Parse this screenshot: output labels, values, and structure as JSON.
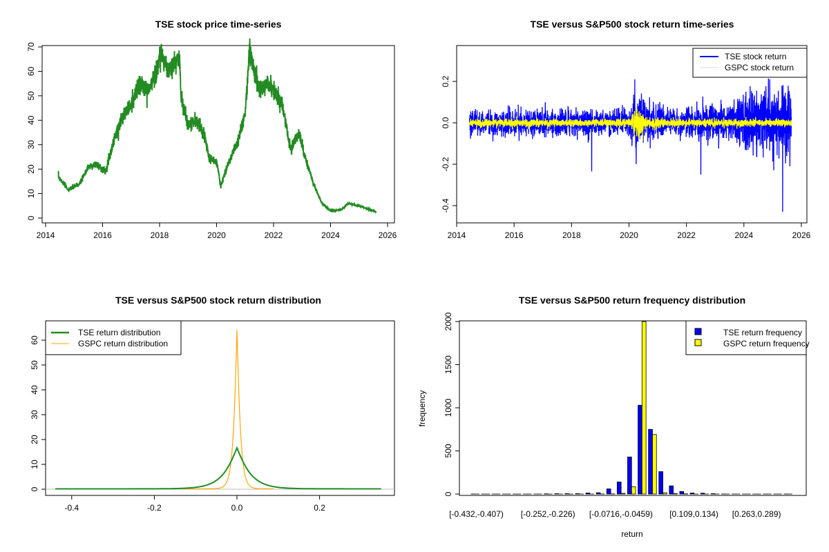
{
  "chart_data": [
    {
      "type": "line",
      "title": "TSE stock price time-series",
      "xlabel": "",
      "ylabel": "",
      "xlim": [
        2014,
        2026
      ],
      "ylim": [
        0,
        70
      ],
      "xticks": [
        2014,
        2016,
        2018,
        2020,
        2022,
        2024,
        2026
      ],
      "yticks": [
        0,
        10,
        20,
        30,
        40,
        50,
        60,
        70
      ],
      "series": [
        {
          "name": "TSE price",
          "color": "#228B22",
          "keypoints": [
            [
              2014.45,
              17
            ],
            [
              2014.8,
              11.5
            ],
            [
              2015.2,
              14
            ],
            [
              2015.5,
              21
            ],
            [
              2015.8,
              22
            ],
            [
              2016.1,
              19
            ],
            [
              2016.4,
              32
            ],
            [
              2016.7,
              42
            ],
            [
              2017.0,
              46
            ],
            [
              2017.3,
              55
            ],
            [
              2017.6,
              52
            ],
            [
              2017.9,
              60
            ],
            [
              2018.05,
              68
            ],
            [
              2018.3,
              60
            ],
            [
              2018.5,
              63
            ],
            [
              2018.7,
              66
            ],
            [
              2018.75,
              50
            ],
            [
              2019.0,
              38
            ],
            [
              2019.3,
              40
            ],
            [
              2019.6,
              33
            ],
            [
              2019.75,
              24
            ],
            [
              2020.0,
              23
            ],
            [
              2020.15,
              13
            ],
            [
              2020.4,
              22
            ],
            [
              2020.7,
              30
            ],
            [
              2021.0,
              42
            ],
            [
              2021.15,
              68
            ],
            [
              2021.3,
              62
            ],
            [
              2021.5,
              52
            ],
            [
              2021.8,
              55
            ],
            [
              2022.0,
              52
            ],
            [
              2022.3,
              46
            ],
            [
              2022.6,
              28
            ],
            [
              2022.9,
              35
            ],
            [
              2023.1,
              25
            ],
            [
              2023.4,
              14
            ],
            [
              2023.7,
              6
            ],
            [
              2024.0,
              3
            ],
            [
              2024.4,
              3.5
            ],
            [
              2024.6,
              6
            ],
            [
              2025.0,
              5
            ],
            [
              2025.6,
              2.5
            ]
          ]
        }
      ]
    },
    {
      "type": "line",
      "title": "TSE versus S&P500 stock return time-series",
      "xlabel": "",
      "ylabel": "",
      "xlim": [
        2014,
        2026
      ],
      "ylim": [
        -0.45,
        0.35
      ],
      "xticks": [
        2014,
        2016,
        2018,
        2020,
        2022,
        2024,
        2026
      ],
      "yticks": [
        -0.4,
        -0.2,
        0.0,
        0.2
      ],
      "legend": {
        "position": "top-right",
        "entries": [
          "TSE stock return",
          "GSPC stock return"
        ]
      },
      "series": [
        {
          "name": "TSE stock return",
          "color": "#0000FF",
          "volatility": 0.03,
          "start": 2014.45,
          "end": 2025.65,
          "extremes": [
            [
              2018.7,
              -0.235
            ],
            [
              2020.2,
              0.21
            ],
            [
              2020.25,
              -0.2
            ],
            [
              2022.5,
              -0.25
            ],
            [
              2024.9,
              0.21
            ],
            [
              2025.35,
              -0.43
            ],
            [
              2025.6,
              -0.21
            ]
          ]
        },
        {
          "name": "GSPC stock return",
          "color": "#FFFF00",
          "volatility": 0.009,
          "start": 2014.45,
          "end": 2025.65
        }
      ]
    },
    {
      "type": "line",
      "title": "TSE versus S&P500 stock return distribution",
      "xlabel": "",
      "ylabel": "",
      "xlim": [
        -0.45,
        0.36
      ],
      "ylim": [
        0,
        65
      ],
      "xticks": [
        -0.4,
        -0.2,
        0.0,
        0.2
      ],
      "yticks": [
        0,
        10,
        20,
        30,
        40,
        50,
        60
      ],
      "legend": {
        "position": "top-left",
        "entries": [
          "TSE return distribution",
          "GSPC return distribution"
        ]
      },
      "series": [
        {
          "name": "TSE return distribution",
          "color": "#228B22",
          "peak": 16.5,
          "scale": 0.03,
          "range": [
            -0.44,
            0.35
          ]
        },
        {
          "name": "GSPC return distribution",
          "color": "#FFA500",
          "peak": 64,
          "scale": 0.0078,
          "range": [
            -0.13,
            0.09
          ]
        }
      ]
    },
    {
      "type": "bar",
      "title": "TSE versus S&P500 return frequency distribution",
      "xlabel": "return",
      "ylabel": "frequency",
      "ylim": [
        0,
        2000
      ],
      "yticks": [
        0,
        500,
        1000,
        1500,
        2000
      ],
      "bin_start": -0.432,
      "bin_width": 0.0257,
      "tick_labels": [
        "[-0.432,-0.407)",
        "[-0.252,-0.226)",
        "[-0.0716,-0.0459)",
        "[0.109,0.134)",
        "[0.263,0.289)"
      ],
      "tick_bins": [
        0,
        7,
        14,
        21,
        27
      ],
      "legend": {
        "position": "top-right",
        "entries": [
          "TSE return frequency",
          "GSPC return frequency"
        ]
      },
      "series": [
        {
          "name": "TSE return frequency",
          "color": "#0000FF",
          "values": [
            1,
            0,
            0,
            0,
            0,
            0,
            0,
            3,
            4,
            5,
            5,
            12,
            15,
            60,
            140,
            430,
            1030,
            750,
            260,
            95,
            30,
            12,
            10,
            5,
            1,
            0,
            0,
            0,
            0,
            0,
            1
          ]
        },
        {
          "name": "GSPC return frequency",
          "color": "#FFFF00",
          "values": [
            0,
            0,
            0,
            0,
            0,
            0,
            0,
            0,
            0,
            0,
            0,
            0,
            1,
            2,
            8,
            85,
            2000,
            690,
            15,
            5,
            3,
            0,
            0,
            0,
            0,
            0,
            0,
            0,
            0,
            0,
            0
          ]
        }
      ]
    }
  ]
}
